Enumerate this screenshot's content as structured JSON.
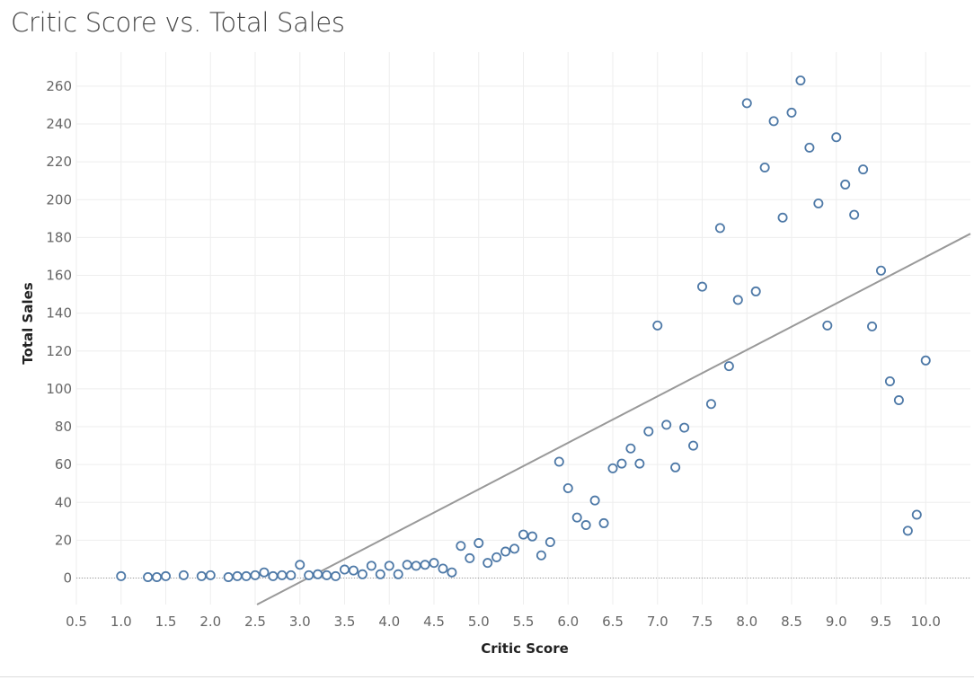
{
  "chart_data": {
    "type": "scatter",
    "title": "Critic Score vs. Total Sales",
    "xlabel": "Critic Score",
    "ylabel": "Total Sales",
    "xlim": [
      0.5,
      10.5
    ],
    "ylim": [
      -14,
      278
    ],
    "xticks": [
      "0.5",
      "1.0",
      "1.5",
      "2.0",
      "2.5",
      "3.0",
      "3.5",
      "4.0",
      "4.5",
      "5.0",
      "5.5",
      "6.0",
      "6.5",
      "7.0",
      "7.5",
      "8.0",
      "8.5",
      "9.0",
      "9.5",
      "10.0"
    ],
    "yticks": [
      "0",
      "20",
      "40",
      "60",
      "80",
      "100",
      "120",
      "140",
      "160",
      "180",
      "200",
      "220",
      "240",
      "260"
    ],
    "grid": true,
    "zero_line": true,
    "trend_line": {
      "type": "linear",
      "x": [
        2.5,
        10.5
      ],
      "y": [
        -14.5,
        182
      ]
    },
    "colors": {
      "marker": "#4e79a7",
      "trend": "#999999",
      "grid": "#eeeeee",
      "zero_line": "#999999"
    },
    "points": [
      {
        "x": 1.0,
        "y": 1
      },
      {
        "x": 1.3,
        "y": 0.5
      },
      {
        "x": 1.4,
        "y": 0.5
      },
      {
        "x": 1.5,
        "y": 1
      },
      {
        "x": 1.7,
        "y": 1.5
      },
      {
        "x": 1.9,
        "y": 1
      },
      {
        "x": 2.0,
        "y": 1.5
      },
      {
        "x": 2.2,
        "y": 0.5
      },
      {
        "x": 2.3,
        "y": 1
      },
      {
        "x": 2.4,
        "y": 1
      },
      {
        "x": 2.5,
        "y": 1.5
      },
      {
        "x": 2.6,
        "y": 3
      },
      {
        "x": 2.7,
        "y": 1
      },
      {
        "x": 2.8,
        "y": 1.5
      },
      {
        "x": 2.9,
        "y": 1.5
      },
      {
        "x": 3.0,
        "y": 7
      },
      {
        "x": 3.1,
        "y": 1.5
      },
      {
        "x": 3.2,
        "y": 2
      },
      {
        "x": 3.3,
        "y": 1.5
      },
      {
        "x": 3.4,
        "y": 1
      },
      {
        "x": 3.5,
        "y": 4.5
      },
      {
        "x": 3.6,
        "y": 4
      },
      {
        "x": 3.7,
        "y": 2
      },
      {
        "x": 3.8,
        "y": 6.5
      },
      {
        "x": 3.9,
        "y": 2
      },
      {
        "x": 4.0,
        "y": 6.5
      },
      {
        "x": 4.1,
        "y": 2
      },
      {
        "x": 4.2,
        "y": 7
      },
      {
        "x": 4.3,
        "y": 6.5
      },
      {
        "x": 4.4,
        "y": 7
      },
      {
        "x": 4.5,
        "y": 8
      },
      {
        "x": 4.6,
        "y": 5
      },
      {
        "x": 4.7,
        "y": 3
      },
      {
        "x": 4.8,
        "y": 17
      },
      {
        "x": 4.9,
        "y": 10.5
      },
      {
        "x": 5.0,
        "y": 18.5
      },
      {
        "x": 5.1,
        "y": 8
      },
      {
        "x": 5.2,
        "y": 11
      },
      {
        "x": 5.3,
        "y": 14
      },
      {
        "x": 5.4,
        "y": 15.5
      },
      {
        "x": 5.5,
        "y": 23
      },
      {
        "x": 5.6,
        "y": 22
      },
      {
        "x": 5.7,
        "y": 12
      },
      {
        "x": 5.8,
        "y": 19
      },
      {
        "x": 5.9,
        "y": 61.5
      },
      {
        "x": 6.0,
        "y": 47.5
      },
      {
        "x": 6.1,
        "y": 32
      },
      {
        "x": 6.2,
        "y": 28
      },
      {
        "x": 6.3,
        "y": 41
      },
      {
        "x": 6.4,
        "y": 29
      },
      {
        "x": 6.5,
        "y": 58
      },
      {
        "x": 6.6,
        "y": 60.5
      },
      {
        "x": 6.7,
        "y": 68.5
      },
      {
        "x": 6.8,
        "y": 60.5
      },
      {
        "x": 6.9,
        "y": 77.5
      },
      {
        "x": 7.0,
        "y": 133.5
      },
      {
        "x": 7.1,
        "y": 81
      },
      {
        "x": 7.2,
        "y": 58.5
      },
      {
        "x": 7.3,
        "y": 79.5
      },
      {
        "x": 7.4,
        "y": 70
      },
      {
        "x": 7.5,
        "y": 154
      },
      {
        "x": 7.6,
        "y": 92
      },
      {
        "x": 7.7,
        "y": 185
      },
      {
        "x": 7.8,
        "y": 112
      },
      {
        "x": 7.9,
        "y": 147
      },
      {
        "x": 8.0,
        "y": 251
      },
      {
        "x": 8.1,
        "y": 151.5
      },
      {
        "x": 8.2,
        "y": 217
      },
      {
        "x": 8.3,
        "y": 241.5
      },
      {
        "x": 8.4,
        "y": 190.5
      },
      {
        "x": 8.5,
        "y": 246
      },
      {
        "x": 8.6,
        "y": 263
      },
      {
        "x": 8.7,
        "y": 227.5
      },
      {
        "x": 8.8,
        "y": 198
      },
      {
        "x": 8.9,
        "y": 133.5
      },
      {
        "x": 9.0,
        "y": 233
      },
      {
        "x": 9.1,
        "y": 208
      },
      {
        "x": 9.2,
        "y": 192
      },
      {
        "x": 9.3,
        "y": 216
      },
      {
        "x": 9.4,
        "y": 133
      },
      {
        "x": 9.5,
        "y": 162.5
      },
      {
        "x": 9.6,
        "y": 104
      },
      {
        "x": 9.7,
        "y": 94
      },
      {
        "x": 9.8,
        "y": 25
      },
      {
        "x": 9.9,
        "y": 33.5
      },
      {
        "x": 10.0,
        "y": 115
      }
    ]
  }
}
